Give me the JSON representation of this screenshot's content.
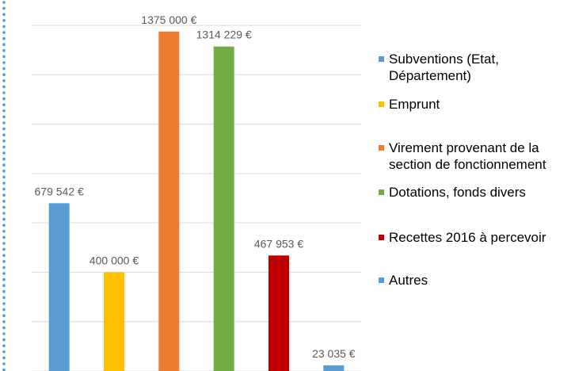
{
  "chart_data": {
    "type": "bar",
    "categories": [
      "Subventions (Etat, Département)",
      "Emprunt",
      "Virement provenant de la section de fonctionnement",
      "Dotations, fonds divers",
      "Recettes 2016 à percevoir",
      "Autres"
    ],
    "values": [
      679542,
      400000,
      1375000,
      1314229,
      467953,
      23035
    ],
    "value_labels": [
      "679 542 €",
      "400 000 €",
      "1375 000 €",
      "1314 229 €",
      "467 953 €",
      "23 035 €"
    ],
    "colors": [
      "#5b9bd5",
      "#ffc000",
      "#ed7d31",
      "#70ad47",
      "#c00000",
      "#5b9bd5"
    ],
    "ylim": [
      0,
      1400000
    ],
    "yticks": [
      0,
      200000,
      400000,
      600000,
      800000,
      1000000,
      1200000,
      1400000
    ],
    "grid": true,
    "legend": "right"
  }
}
